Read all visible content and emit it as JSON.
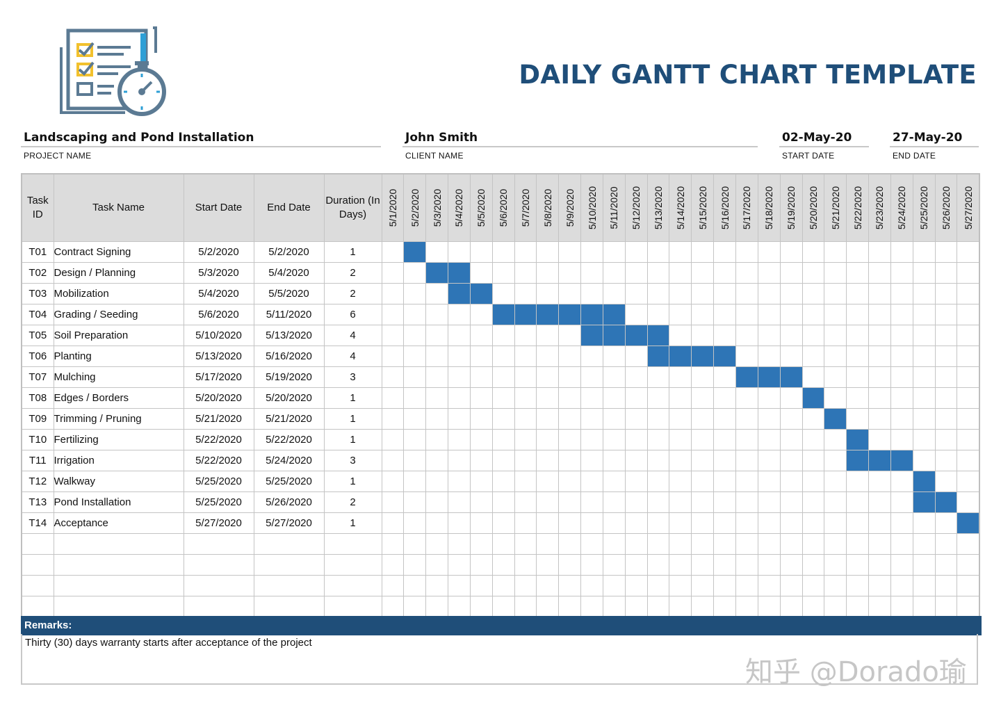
{
  "header": {
    "title": "DAILY GANTT CHART TEMPLATE",
    "logo_icon": "checklist-stopwatch-icon"
  },
  "project": {
    "name_value": "Landscaping and Pond Installation",
    "name_label": "PROJECT NAME",
    "client_value": "John Smith",
    "client_label": "CLIENT NAME",
    "start_value": "02-May-20",
    "start_label": "START DATE",
    "end_value": "27-May-20",
    "end_label": "END DATE"
  },
  "columns": {
    "task_id": "Task ID",
    "task_name": "Task Name",
    "start_date": "Start Date",
    "end_date": "End Date",
    "duration": "Duration (In Days)"
  },
  "dates": [
    "5/1/2020",
    "5/2/2020",
    "5/3/2020",
    "5/4/2020",
    "5/5/2020",
    "5/6/2020",
    "5/7/2020",
    "5/8/2020",
    "5/9/2020",
    "5/10/2020",
    "5/11/2020",
    "5/12/2020",
    "5/13/2020",
    "5/14/2020",
    "5/15/2020",
    "5/16/2020",
    "5/17/2020",
    "5/18/2020",
    "5/19/2020",
    "5/20/2020",
    "5/21/2020",
    "5/22/2020",
    "5/23/2020",
    "5/24/2020",
    "5/25/2020",
    "5/26/2020",
    "5/27/2020"
  ],
  "tasks": [
    {
      "id": "T01",
      "name": "Contract Signing",
      "start": "5/2/2020",
      "end": "5/2/2020",
      "duration": "1"
    },
    {
      "id": "T02",
      "name": "Design / Planning",
      "start": "5/3/2020",
      "end": "5/4/2020",
      "duration": "2"
    },
    {
      "id": "T03",
      "name": "Mobilization",
      "start": "5/4/2020",
      "end": "5/5/2020",
      "duration": "2"
    },
    {
      "id": "T04",
      "name": "Grading / Seeding",
      "start": "5/6/2020",
      "end": "5/11/2020",
      "duration": "6"
    },
    {
      "id": "T05",
      "name": "Soil Preparation",
      "start": "5/10/2020",
      "end": "5/13/2020",
      "duration": "4"
    },
    {
      "id": "T06",
      "name": "Planting",
      "start": "5/13/2020",
      "end": "5/16/2020",
      "duration": "4"
    },
    {
      "id": "T07",
      "name": "Mulching",
      "start": "5/17/2020",
      "end": "5/19/2020",
      "duration": "3"
    },
    {
      "id": "T08",
      "name": "Edges / Borders",
      "start": "5/20/2020",
      "end": "5/20/2020",
      "duration": "1"
    },
    {
      "id": "T09",
      "name": "Trimming / Pruning",
      "start": "5/21/2020",
      "end": "5/21/2020",
      "duration": "1"
    },
    {
      "id": "T10",
      "name": "Fertilizing",
      "start": "5/22/2020",
      "end": "5/22/2020",
      "duration": "1"
    },
    {
      "id": "T11",
      "name": "Irrigation",
      "start": "5/22/2020",
      "end": "5/24/2020",
      "duration": "3"
    },
    {
      "id": "T12",
      "name": "Walkway",
      "start": "5/25/2020",
      "end": "5/25/2020",
      "duration": "1"
    },
    {
      "id": "T13",
      "name": "Pond Installation",
      "start": "5/25/2020",
      "end": "5/26/2020",
      "duration": "2"
    },
    {
      "id": "T14",
      "name": "Acceptance",
      "start": "5/27/2020",
      "end": "5/27/2020",
      "duration": "1"
    }
  ],
  "empty_rows": 4,
  "bar_color": "#2e75b6",
  "accent_color": "#1f4e79",
  "remarks": {
    "label": "Remarks:",
    "text": "Thirty (30) days warranty starts after acceptance of the project"
  },
  "watermark": "知乎 @Dorado瑜"
}
